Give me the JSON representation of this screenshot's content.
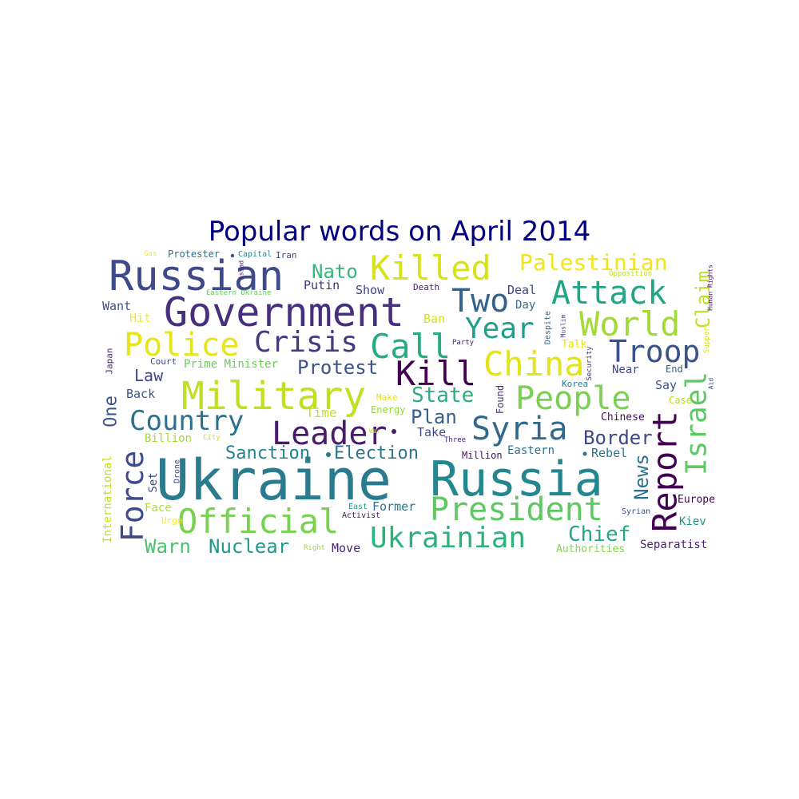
{
  "chart_data": {
    "type": "wordcloud",
    "title": "Popular words on April 2014",
    "title_color": "#00007f",
    "colormap": "viridis",
    "words": [
      {
        "text": "Ukraine",
        "color": "#2a7b8e"
      },
      {
        "text": "Russia",
        "color": "#24868e"
      },
      {
        "text": "Government",
        "color": "#472f7d"
      },
      {
        "text": "Russian",
        "color": "#3e4a89"
      },
      {
        "text": "Military",
        "color": "#c2df23"
      },
      {
        "text": "Killed",
        "color": "#d8e219"
      },
      {
        "text": "President",
        "color": "#5ec962"
      },
      {
        "text": "Official",
        "color": "#7ad151"
      },
      {
        "text": "Attack",
        "color": "#21a685"
      },
      {
        "text": "Police",
        "color": "#e7e419"
      },
      {
        "text": "Crisis",
        "color": "#443983"
      },
      {
        "text": "Call",
        "color": "#25ac82"
      },
      {
        "text": "Two",
        "color": "#33638d"
      },
      {
        "text": "World",
        "color": "#a2da37"
      },
      {
        "text": "Year",
        "color": "#1f9e89"
      },
      {
        "text": "China",
        "color": "#e2e418"
      },
      {
        "text": "Troop",
        "color": "#3b528b"
      },
      {
        "text": "Kill",
        "color": "#440154"
      },
      {
        "text": "People",
        "color": "#7ad151"
      },
      {
        "text": "Leader",
        "color": "#481b6d"
      },
      {
        "text": "Syria",
        "color": "#31688e"
      },
      {
        "text": "Country",
        "color": "#2c728e"
      },
      {
        "text": "Report",
        "color": "#440154"
      },
      {
        "text": "Israel",
        "color": "#5ec962"
      },
      {
        "text": "Force",
        "color": "#3e4a89"
      },
      {
        "text": "Ukrainian",
        "color": "#2db27d"
      },
      {
        "text": "Palestinian",
        "color": "#f1e51d"
      },
      {
        "text": "Nato",
        "color": "#35b779"
      },
      {
        "text": "State",
        "color": "#29af7f"
      },
      {
        "text": "Protest",
        "color": "#3b528b"
      },
      {
        "text": "Chief",
        "color": "#22a884"
      },
      {
        "text": "Nuclear",
        "color": "#1f9a8a"
      },
      {
        "text": "Warn",
        "color": "#4ac16d"
      },
      {
        "text": "Border",
        "color": "#3e4989"
      },
      {
        "text": "News",
        "color": "#2c728e"
      },
      {
        "text": "Sanction",
        "color": "#26828e"
      },
      {
        "text": "Election",
        "color": "#2a768e"
      },
      {
        "text": "Claim",
        "color": "#bddf26"
      },
      {
        "text": "Plan",
        "color": "#355f8d"
      },
      {
        "text": "Law",
        "color": "#3f4788"
      },
      {
        "text": "Prime Minister",
        "color": "#6ccd5a"
      },
      {
        "text": "One",
        "color": "#39568c"
      },
      {
        "text": "Putin",
        "color": "#46327e"
      },
      {
        "text": "Show",
        "color": "#3f4788"
      },
      {
        "text": "Deal",
        "color": "#414487"
      },
      {
        "text": "Day",
        "color": "#2e6e8e"
      },
      {
        "text": "Want",
        "color": "#3b528b"
      },
      {
        "text": "Hit",
        "color": "#fde725"
      },
      {
        "text": "Ban",
        "color": "#d2e21b"
      },
      {
        "text": "Death",
        "color": "#482071"
      },
      {
        "text": "Talk",
        "color": "#e5e419"
      },
      {
        "text": "Near",
        "color": "#414487"
      },
      {
        "text": "End",
        "color": "#35608d"
      },
      {
        "text": "Say",
        "color": "#3b528b"
      },
      {
        "text": "Case",
        "color": "#b5de2b"
      },
      {
        "text": "Back",
        "color": "#38588c"
      },
      {
        "text": "Time",
        "color": "#c8e020"
      },
      {
        "text": "Take",
        "color": "#3e4c8a"
      },
      {
        "text": "Billion",
        "color": "#a5db36"
      },
      {
        "text": "Court",
        "color": "#3e4989"
      },
      {
        "text": "Japan",
        "color": "#482475"
      },
      {
        "text": "Make",
        "color": "#e0e318"
      },
      {
        "text": "Energy",
        "color": "#93d741"
      },
      {
        "text": "Found",
        "color": "#472c7a"
      },
      {
        "text": "Korea",
        "color": "#287c8e"
      },
      {
        "text": "Chinese",
        "color": "#460b5e"
      },
      {
        "text": "Eastern",
        "color": "#2c728e"
      },
      {
        "text": "Rebel",
        "color": "#2d708e"
      },
      {
        "text": "Million",
        "color": "#471063"
      },
      {
        "text": "Former",
        "color": "#2c728e"
      },
      {
        "text": "Move",
        "color": "#482878"
      },
      {
        "text": "Face",
        "color": "#b2dd2d"
      },
      {
        "text": "Urge",
        "color": "#fde725"
      },
      {
        "text": "Activist",
        "color": "#470e61"
      },
      {
        "text": "East",
        "color": "#1e9b8a"
      },
      {
        "text": "Right",
        "color": "#9bd93c"
      },
      {
        "text": "Syrian",
        "color": "#3b528b"
      },
      {
        "text": "Authorities",
        "color": "#86d549"
      },
      {
        "text": "Separatist",
        "color": "#482173"
      },
      {
        "text": "Europe",
        "color": "#440154"
      },
      {
        "text": "Kiev",
        "color": "#20928c"
      },
      {
        "text": "International",
        "color": "#c2df23"
      },
      {
        "text": "Set",
        "color": "#3e4a89"
      },
      {
        "text": "Drone",
        "color": "#3e4a89"
      },
      {
        "text": "City",
        "color": "#c8e020"
      },
      {
        "text": "Three",
        "color": "#482475"
      },
      {
        "text": "War",
        "color": "#b8de29"
      },
      {
        "text": "Gas",
        "color": "#fde725"
      },
      {
        "text": "Protester",
        "color": "#2c728e"
      },
      {
        "text": "Capital",
        "color": "#25848e"
      },
      {
        "text": "Iran",
        "color": "#3f4788"
      },
      {
        "text": "Eastern Ukraine",
        "color": "#67cc5c"
      },
      {
        "text": "Assad",
        "color": "#482878"
      },
      {
        "text": "Opposition",
        "color": "#b8de29"
      },
      {
        "text": "Human Rights",
        "color": "#481b6d"
      },
      {
        "text": "Support",
        "color": "#d5e21a"
      },
      {
        "text": "Despite",
        "color": "#32658e"
      },
      {
        "text": "Muslim",
        "color": "#3f4788"
      },
      {
        "text": "Party",
        "color": "#482878"
      },
      {
        "text": "Security",
        "color": "#46327e"
      },
      {
        "text": "Aid",
        "color": "#3b528b"
      }
    ]
  }
}
